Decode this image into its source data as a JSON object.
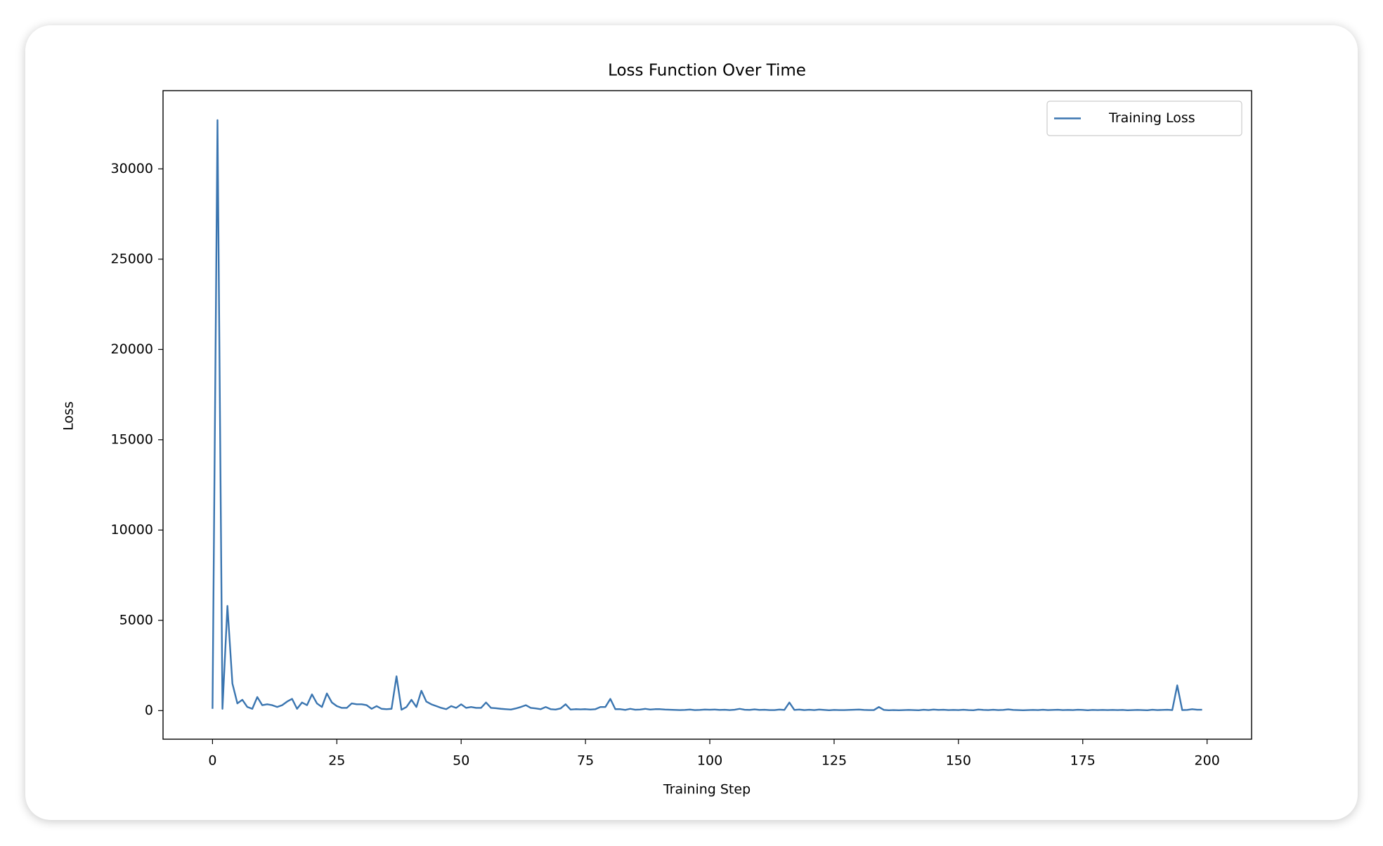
{
  "chart_data": {
    "type": "line",
    "title": "Loss Function Over Time",
    "xlabel": "Training Step",
    "ylabel": "Loss",
    "x": [
      0,
      1,
      2,
      3,
      4,
      5,
      6,
      7,
      8,
      9,
      10,
      11,
      12,
      13,
      14,
      15,
      16,
      17,
      18,
      19,
      20,
      21,
      22,
      23,
      24,
      25,
      26,
      27,
      28,
      29,
      30,
      31,
      32,
      33,
      34,
      35,
      36,
      37,
      38,
      39,
      40,
      41,
      42,
      43,
      44,
      45,
      46,
      47,
      48,
      49,
      50,
      51,
      52,
      53,
      54,
      55,
      56,
      57,
      58,
      59,
      60,
      61,
      62,
      63,
      64,
      65,
      66,
      67,
      68,
      69,
      70,
      71,
      72,
      73,
      74,
      75,
      76,
      77,
      78,
      79,
      80,
      81,
      82,
      83,
      84,
      85,
      86,
      87,
      88,
      89,
      90,
      91,
      92,
      93,
      94,
      95,
      96,
      97,
      98,
      99,
      100,
      101,
      102,
      103,
      104,
      105,
      106,
      107,
      108,
      109,
      110,
      111,
      112,
      113,
      114,
      115,
      116,
      117,
      118,
      119,
      120,
      121,
      122,
      123,
      124,
      125,
      126,
      127,
      128,
      129,
      130,
      131,
      132,
      133,
      134,
      135,
      136,
      137,
      138,
      139,
      140,
      141,
      142,
      143,
      144,
      145,
      146,
      147,
      148,
      149,
      150,
      151,
      152,
      153,
      154,
      155,
      156,
      157,
      158,
      159,
      160,
      161,
      162,
      163,
      164,
      165,
      166,
      167,
      168,
      169,
      170,
      171,
      172,
      173,
      174,
      175,
      176,
      177,
      178,
      179,
      180,
      181,
      182,
      183,
      184,
      185,
      186,
      187,
      188,
      189,
      190,
      191,
      192,
      193,
      194,
      195,
      196,
      197,
      198,
      199
    ],
    "series": [
      {
        "name": "Training Loss",
        "color": "#3a75b0",
        "values": [
          100,
          32700,
          100,
          5800,
          1500,
          400,
          600,
          200,
          100,
          750,
          300,
          350,
          300,
          200,
          300,
          500,
          650,
          100,
          450,
          300,
          900,
          400,
          200,
          950,
          450,
          250,
          150,
          150,
          400,
          350,
          350,
          300,
          100,
          250,
          100,
          80,
          100,
          1900,
          50,
          200,
          600,
          200,
          1100,
          500,
          350,
          250,
          150,
          80,
          250,
          150,
          350,
          150,
          200,
          150,
          150,
          450,
          150,
          130,
          100,
          80,
          60,
          120,
          200,
          300,
          150,
          120,
          80,
          200,
          80,
          60,
          120,
          350,
          60,
          80,
          70,
          80,
          60,
          80,
          200,
          200,
          650,
          80,
          80,
          40,
          100,
          50,
          60,
          100,
          60,
          80,
          80,
          60,
          50,
          40,
          30,
          40,
          60,
          30,
          40,
          60,
          50,
          60,
          40,
          50,
          30,
          50,
          100,
          50,
          40,
          70,
          40,
          50,
          30,
          30,
          60,
          40,
          450,
          40,
          60,
          30,
          50,
          30,
          60,
          40,
          20,
          40,
          30,
          30,
          40,
          50,
          60,
          40,
          30,
          30,
          200,
          40,
          20,
          30,
          20,
          30,
          40,
          30,
          20,
          50,
          30,
          60,
          40,
          50,
          30,
          40,
          30,
          50,
          30,
          20,
          60,
          40,
          30,
          50,
          30,
          40,
          70,
          40,
          30,
          20,
          30,
          40,
          30,
          50,
          30,
          40,
          50,
          30,
          40,
          30,
          50,
          40,
          20,
          40,
          30,
          40,
          30,
          40,
          30,
          40,
          20,
          30,
          40,
          30,
          20,
          50,
          30,
          40,
          50,
          30,
          1400,
          30,
          40,
          80,
          50,
          50
        ]
      }
    ],
    "xlim": [
      -9.95,
      208.95
    ],
    "xticks": [
      0,
      25,
      50,
      75,
      100,
      125,
      150,
      175,
      200
    ],
    "ylim": [
      -1583,
      34333
    ],
    "yticks": [
      0,
      5000,
      10000,
      15000,
      20000,
      25000,
      30000
    ],
    "legend": "upper right"
  }
}
